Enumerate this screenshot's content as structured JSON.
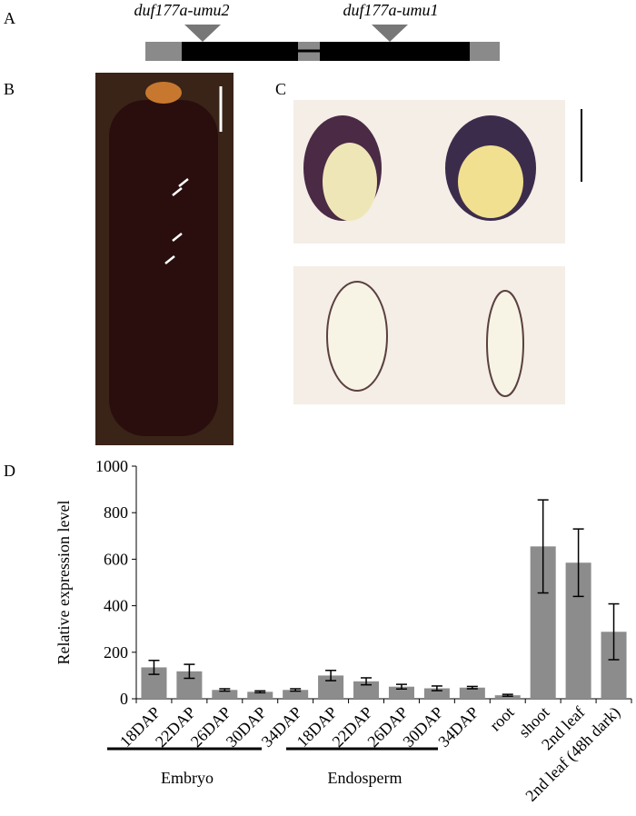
{
  "panel_labels": [
    "A",
    "B",
    "C",
    "D"
  ],
  "gene_diagram": {
    "alleles": [
      "duf177a-umu2",
      "duf177a-umu1"
    ]
  },
  "chart_data": {
    "type": "bar",
    "ylabel": "Relative expression level",
    "categories": [
      "18DAP",
      "22DAP",
      "26DAP",
      "30DAP",
      "34DAP",
      "18DAP",
      "22DAP",
      "26DAP",
      "30DAP",
      "34DAP",
      "root",
      "shoot",
      "2nd leaf",
      "2nd leaf (48h dark)"
    ],
    "values": [
      135,
      118,
      38,
      30,
      38,
      100,
      75,
      52,
      45,
      48,
      15,
      655,
      585,
      288
    ],
    "errors": [
      30,
      30,
      5,
      4,
      5,
      22,
      15,
      10,
      10,
      5,
      4,
      200,
      145,
      120
    ],
    "color": "#8c8c8c",
    "ylim": [
      0,
      1000
    ],
    "yticks": [
      0,
      200,
      400,
      600,
      800,
      1000
    ],
    "group_labels": [
      "Embryo",
      "Endosperm"
    ]
  }
}
